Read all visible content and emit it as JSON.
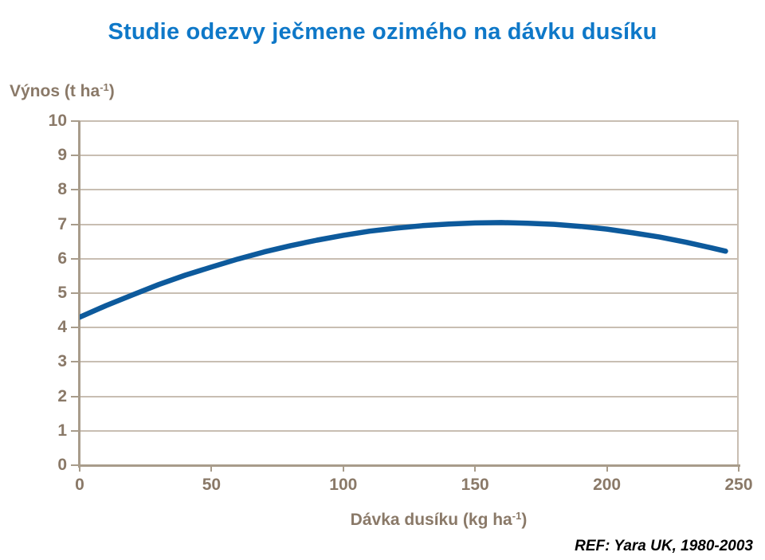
{
  "title": "Studie odezvy ječmene ozimého na dávku dusíku",
  "ref_note": "REF: Yara UK, 1980-2003",
  "colors": {
    "title_blue": "#0E78C8",
    "curve_blue": "#0D5A9C",
    "text_brown": "#8A7968",
    "axis_tan": "#A89C8B",
    "grid_tan": "#C8BEB2"
  },
  "chart_data": {
    "type": "line",
    "title": "Studie odezvy ječmene ozimého na dávku dusíku",
    "ylabel": "Výnos (t ha⁻¹)",
    "xlabel": "Dávka dusíku (kg ha⁻¹)",
    "ylabel_parts": {
      "text": "Výnos (t ha",
      "sup": "-1",
      "close": ")"
    },
    "xlabel_parts": {
      "text": "Dávka dusíku (kg ha",
      "sup": "-1",
      "close": ")"
    },
    "xlim": [
      0,
      250
    ],
    "ylim": [
      0,
      10
    ],
    "xticks": [
      0,
      50,
      100,
      150,
      200,
      250
    ],
    "yticks": [
      0,
      1,
      2,
      3,
      4,
      5,
      6,
      7,
      8,
      9,
      10
    ],
    "grid": "horizontal gridlines at every y tick",
    "legend": "none",
    "series": [
      {
        "color": "#0D5A9C",
        "points": [
          [
            0,
            4.3
          ],
          [
            10,
            4.64
          ],
          [
            20,
            4.95
          ],
          [
            30,
            5.25
          ],
          [
            40,
            5.52
          ],
          [
            50,
            5.76
          ],
          [
            60,
            5.99
          ],
          [
            70,
            6.2
          ],
          [
            80,
            6.38
          ],
          [
            90,
            6.54
          ],
          [
            100,
            6.68
          ],
          [
            110,
            6.8
          ],
          [
            120,
            6.89
          ],
          [
            130,
            6.96
          ],
          [
            140,
            7.01
          ],
          [
            150,
            7.04
          ],
          [
            160,
            7.05
          ],
          [
            170,
            7.03
          ],
          [
            180,
            7.0
          ],
          [
            190,
            6.94
          ],
          [
            200,
            6.86
          ],
          [
            210,
            6.75
          ],
          [
            220,
            6.63
          ],
          [
            230,
            6.48
          ],
          [
            240,
            6.31
          ],
          [
            245,
            6.22
          ]
        ]
      }
    ]
  }
}
